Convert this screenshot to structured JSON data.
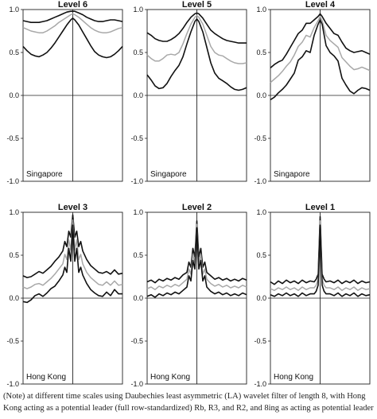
{
  "chart_data": [
    {
      "type": "line",
      "title": "Level 6",
      "region": "Singapore",
      "ylim": [
        -1.0,
        1.0
      ],
      "yticks": [
        "1.0",
        "0.5",
        "0.0",
        "-0.5",
        "-1.0"
      ],
      "x": [
        0,
        0.04,
        0.08,
        0.12,
        0.16,
        0.2,
        0.24,
        0.28,
        0.32,
        0.36,
        0.4,
        0.44,
        0.48,
        0.5,
        0.52,
        0.56,
        0.6,
        0.64,
        0.68,
        0.72,
        0.76,
        0.8,
        0.84,
        0.88,
        0.92,
        0.96,
        1.0
      ],
      "series": [
        {
          "role": "upper",
          "values": [
            0.87,
            0.86,
            0.85,
            0.85,
            0.85,
            0.86,
            0.87,
            0.89,
            0.91,
            0.93,
            0.95,
            0.97,
            0.98,
            0.98,
            0.98,
            0.96,
            0.94,
            0.91,
            0.89,
            0.87,
            0.86,
            0.86,
            0.87,
            0.88,
            0.88,
            0.87,
            0.86
          ]
        },
        {
          "role": "estimate",
          "values": [
            0.79,
            0.77,
            0.75,
            0.74,
            0.73,
            0.73,
            0.75,
            0.78,
            0.81,
            0.85,
            0.88,
            0.91,
            0.94,
            0.95,
            0.94,
            0.91,
            0.87,
            0.83,
            0.79,
            0.76,
            0.74,
            0.73,
            0.73,
            0.74,
            0.76,
            0.78,
            0.79
          ]
        },
        {
          "role": "lower",
          "values": [
            0.57,
            0.52,
            0.48,
            0.46,
            0.45,
            0.47,
            0.5,
            0.55,
            0.61,
            0.68,
            0.75,
            0.82,
            0.88,
            0.9,
            0.88,
            0.82,
            0.74,
            0.66,
            0.58,
            0.51,
            0.47,
            0.45,
            0.44,
            0.45,
            0.48,
            0.52,
            0.57
          ]
        }
      ]
    },
    {
      "type": "line",
      "title": "Level 5",
      "region": "Singapore",
      "ylim": [
        -1.0,
        1.0
      ],
      "yticks": [
        "1.0",
        "0.5",
        "0.0",
        "-0.5",
        "-1.0"
      ],
      "x": [
        0,
        0.04,
        0.08,
        0.12,
        0.16,
        0.2,
        0.24,
        0.28,
        0.32,
        0.36,
        0.4,
        0.44,
        0.48,
        0.5,
        0.52,
        0.56,
        0.6,
        0.64,
        0.68,
        0.72,
        0.76,
        0.8,
        0.84,
        0.88,
        0.92,
        0.96,
        1.0
      ],
      "series": [
        {
          "role": "upper",
          "values": [
            0.73,
            0.7,
            0.66,
            0.64,
            0.63,
            0.63,
            0.65,
            0.68,
            0.72,
            0.78,
            0.85,
            0.91,
            0.95,
            0.96,
            0.95,
            0.9,
            0.83,
            0.76,
            0.72,
            0.69,
            0.66,
            0.64,
            0.63,
            0.62,
            0.61,
            0.61,
            0.61
          ]
        },
        {
          "role": "estimate",
          "values": [
            0.47,
            0.43,
            0.4,
            0.4,
            0.43,
            0.47,
            0.48,
            0.47,
            0.5,
            0.6,
            0.72,
            0.83,
            0.91,
            0.93,
            0.91,
            0.83,
            0.7,
            0.57,
            0.5,
            0.47,
            0.46,
            0.43,
            0.4,
            0.38,
            0.37,
            0.37,
            0.38
          ]
        },
        {
          "role": "lower",
          "values": [
            0.24,
            0.18,
            0.11,
            0.08,
            0.09,
            0.14,
            0.22,
            0.29,
            0.35,
            0.45,
            0.6,
            0.74,
            0.86,
            0.89,
            0.86,
            0.74,
            0.56,
            0.38,
            0.26,
            0.2,
            0.17,
            0.14,
            0.1,
            0.07,
            0.06,
            0.07,
            0.09
          ]
        }
      ]
    },
    {
      "type": "line",
      "title": "Level 4",
      "region": "Singapore",
      "ylim": [
        -1.0,
        1.0
      ],
      "yticks": [
        "1.0",
        "0.5",
        "0.0",
        "-0.5",
        "-1.0"
      ],
      "x": [
        0,
        0.04,
        0.08,
        0.12,
        0.16,
        0.2,
        0.24,
        0.28,
        0.32,
        0.36,
        0.4,
        0.44,
        0.48,
        0.5,
        0.52,
        0.56,
        0.6,
        0.64,
        0.68,
        0.72,
        0.76,
        0.8,
        0.84,
        0.88,
        0.92,
        0.96,
        1.0
      ],
      "series": [
        {
          "role": "upper",
          "values": [
            0.32,
            0.36,
            0.39,
            0.41,
            0.48,
            0.56,
            0.64,
            0.72,
            0.76,
            0.84,
            0.84,
            0.88,
            0.92,
            0.95,
            0.92,
            0.84,
            0.78,
            0.72,
            0.7,
            0.62,
            0.55,
            0.52,
            0.5,
            0.51,
            0.52,
            0.5,
            0.48
          ]
        },
        {
          "role": "estimate",
          "values": [
            0.15,
            0.19,
            0.23,
            0.28,
            0.34,
            0.39,
            0.47,
            0.57,
            0.62,
            0.7,
            0.68,
            0.79,
            0.87,
            0.92,
            0.87,
            0.7,
            0.64,
            0.6,
            0.56,
            0.44,
            0.39,
            0.34,
            0.3,
            0.31,
            0.33,
            0.31,
            0.29
          ]
        },
        {
          "role": "lower",
          "values": [
            -0.05,
            -0.02,
            0.03,
            0.07,
            0.12,
            0.19,
            0.26,
            0.41,
            0.45,
            0.52,
            0.5,
            0.7,
            0.83,
            0.88,
            0.83,
            0.58,
            0.5,
            0.46,
            0.4,
            0.2,
            0.12,
            0.05,
            0.02,
            0.06,
            0.09,
            0.08,
            0.06
          ]
        }
      ]
    },
    {
      "type": "line",
      "title": "Level 3",
      "region": "Hong Kong",
      "ylim": [
        -1.0,
        1.0
      ],
      "yticks": [
        "1.0",
        "0.5",
        "0.0",
        "-0.5",
        "-1.0"
      ],
      "x": [
        0,
        0.04,
        0.08,
        0.12,
        0.16,
        0.2,
        0.24,
        0.28,
        0.32,
        0.36,
        0.4,
        0.42,
        0.44,
        0.46,
        0.48,
        0.5,
        0.52,
        0.54,
        0.56,
        0.58,
        0.6,
        0.64,
        0.68,
        0.72,
        0.76,
        0.8,
        0.84,
        0.88,
        0.92,
        0.96,
        1.0
      ],
      "series": [
        {
          "role": "upper",
          "values": [
            0.26,
            0.24,
            0.25,
            0.28,
            0.31,
            0.29,
            0.33,
            0.37,
            0.43,
            0.48,
            0.55,
            0.66,
            0.6,
            0.78,
            0.71,
            0.97,
            0.71,
            0.78,
            0.6,
            0.66,
            0.55,
            0.45,
            0.38,
            0.34,
            0.3,
            0.29,
            0.31,
            0.28,
            0.33,
            0.28,
            0.29
          ]
        },
        {
          "role": "estimate",
          "values": [
            0.13,
            0.11,
            0.13,
            0.16,
            0.17,
            0.15,
            0.19,
            0.23,
            0.28,
            0.34,
            0.4,
            0.51,
            0.45,
            0.68,
            0.56,
            0.91,
            0.56,
            0.68,
            0.45,
            0.51,
            0.4,
            0.3,
            0.24,
            0.2,
            0.16,
            0.15,
            0.19,
            0.15,
            0.2,
            0.15,
            0.16
          ]
        },
        {
          "role": "lower",
          "values": [
            -0.04,
            -0.05,
            -0.02,
            0.03,
            0.05,
            0.02,
            0.06,
            0.11,
            0.14,
            0.2,
            0.27,
            0.36,
            0.3,
            0.58,
            0.43,
            0.85,
            0.43,
            0.58,
            0.3,
            0.36,
            0.27,
            0.17,
            0.1,
            0.06,
            0.03,
            0.02,
            0.07,
            0.03,
            0.1,
            0.05,
            0.05
          ]
        }
      ]
    },
    {
      "type": "line",
      "title": "Level 2",
      "region": "Hong Kong",
      "ylim": [
        -1.0,
        1.0
      ],
      "yticks": [
        "1.0",
        "0.5",
        "0.0",
        "-0.5",
        "-1.0"
      ],
      "x": [
        0,
        0.04,
        0.08,
        0.12,
        0.16,
        0.2,
        0.24,
        0.28,
        0.32,
        0.36,
        0.4,
        0.42,
        0.44,
        0.46,
        0.48,
        0.5,
        0.52,
        0.54,
        0.56,
        0.58,
        0.6,
        0.64,
        0.68,
        0.72,
        0.76,
        0.8,
        0.84,
        0.88,
        0.92,
        0.96,
        1.0
      ],
      "series": [
        {
          "role": "upper",
          "values": [
            0.19,
            0.21,
            0.18,
            0.22,
            0.2,
            0.23,
            0.21,
            0.24,
            0.22,
            0.27,
            0.3,
            0.42,
            0.36,
            0.58,
            0.48,
            0.9,
            0.48,
            0.58,
            0.36,
            0.42,
            0.3,
            0.26,
            0.22,
            0.24,
            0.21,
            0.23,
            0.2,
            0.22,
            0.2,
            0.23,
            0.21
          ]
        },
        {
          "role": "estimate",
          "values": [
            0.11,
            0.13,
            0.1,
            0.14,
            0.12,
            0.15,
            0.13,
            0.16,
            0.14,
            0.18,
            0.22,
            0.34,
            0.28,
            0.51,
            0.41,
            0.86,
            0.41,
            0.51,
            0.28,
            0.34,
            0.22,
            0.17,
            0.14,
            0.16,
            0.13,
            0.15,
            0.12,
            0.14,
            0.12,
            0.15,
            0.13
          ]
        },
        {
          "role": "lower",
          "values": [
            0.02,
            0.04,
            0.01,
            0.05,
            0.03,
            0.06,
            0.04,
            0.07,
            0.05,
            0.09,
            0.13,
            0.26,
            0.2,
            0.44,
            0.34,
            0.82,
            0.34,
            0.44,
            0.2,
            0.26,
            0.13,
            0.08,
            0.05,
            0.07,
            0.04,
            0.06,
            0.03,
            0.05,
            0.03,
            0.06,
            0.04
          ]
        }
      ]
    },
    {
      "type": "line",
      "title": "Level 1",
      "region": "Hong Kong",
      "ylim": [
        -1.0,
        1.0
      ],
      "yticks": [
        "1.0",
        "0.5",
        "0.0",
        "-0.5",
        "-1.0"
      ],
      "x": [
        0,
        0.04,
        0.08,
        0.12,
        0.16,
        0.2,
        0.24,
        0.28,
        0.32,
        0.36,
        0.4,
        0.44,
        0.46,
        0.48,
        0.5,
        0.52,
        0.54,
        0.56,
        0.6,
        0.64,
        0.68,
        0.72,
        0.76,
        0.8,
        0.84,
        0.88,
        0.92,
        0.96,
        1.0
      ],
      "series": [
        {
          "role": "upper",
          "values": [
            0.19,
            0.16,
            0.2,
            0.17,
            0.21,
            0.18,
            0.2,
            0.17,
            0.21,
            0.18,
            0.2,
            0.19,
            0.22,
            0.28,
            0.95,
            0.28,
            0.22,
            0.19,
            0.2,
            0.18,
            0.21,
            0.17,
            0.2,
            0.18,
            0.21,
            0.17,
            0.2,
            0.18,
            0.19
          ]
        },
        {
          "role": "estimate",
          "values": [
            0.11,
            0.09,
            0.12,
            0.1,
            0.13,
            0.1,
            0.12,
            0.09,
            0.13,
            0.1,
            0.12,
            0.12,
            0.15,
            0.22,
            0.9,
            0.22,
            0.15,
            0.12,
            0.12,
            0.1,
            0.13,
            0.09,
            0.12,
            0.1,
            0.13,
            0.09,
            0.12,
            0.1,
            0.11
          ]
        },
        {
          "role": "lower",
          "values": [
            0.04,
            0.02,
            0.05,
            0.03,
            0.06,
            0.03,
            0.05,
            0.02,
            0.06,
            0.03,
            0.05,
            0.05,
            0.08,
            0.15,
            0.85,
            0.15,
            0.08,
            0.05,
            0.05,
            0.03,
            0.06,
            0.02,
            0.05,
            0.03,
            0.06,
            0.02,
            0.05,
            0.03,
            0.04
          ]
        }
      ]
    }
  ],
  "colors": {
    "bound_line": "#111111",
    "estimate_line": "#a8a8a8",
    "axis": "#222222",
    "text": "#111111"
  },
  "caption": {
    "line1": "(Note) at different time scales using Daubechies least asymmetric (LA) wavelet filter of length 8, with Hong",
    "line2": "Kong acting as a potential leader (full row-standardized)  Rb, R3, and R2, and 8ing as acting as potential leader"
  }
}
